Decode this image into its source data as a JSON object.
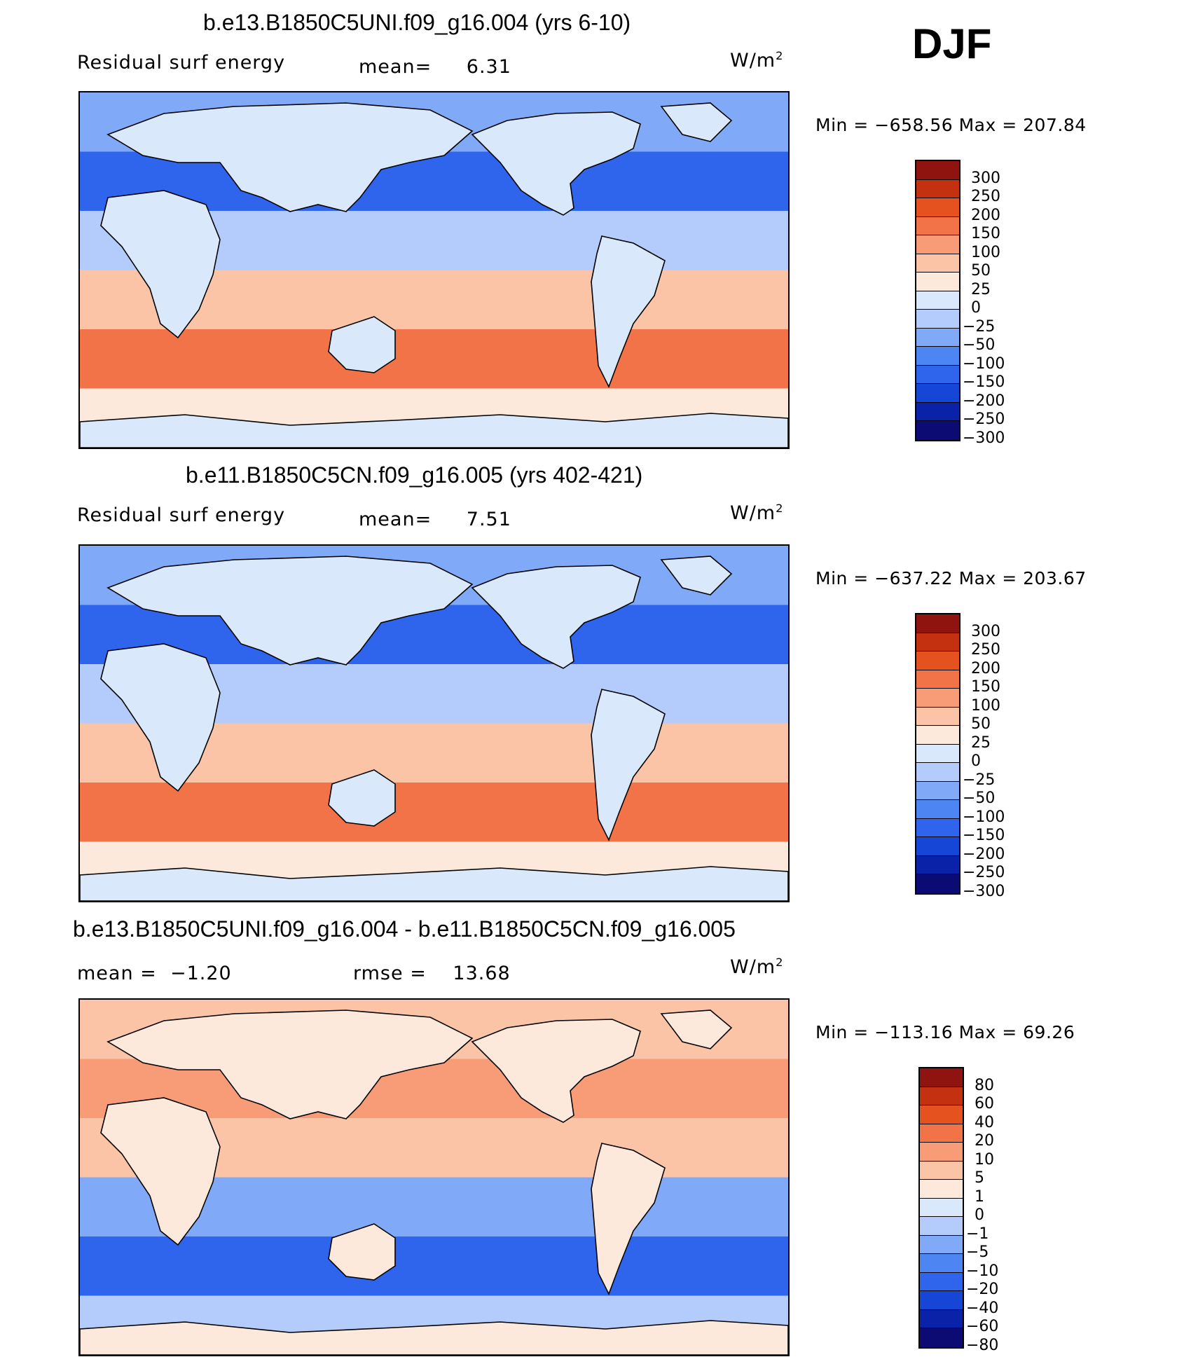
{
  "season": "DJF",
  "units_base": "W/m",
  "units_exp": "2",
  "colors": {
    "main": [
      "#0b0b73",
      "#0a22a8",
      "#1646d6",
      "#2e65ec",
      "#4d86f2",
      "#80aaf7",
      "#b3ccfb",
      "#d9e8fb",
      "#fde9db",
      "#fcc4a6",
      "#f79c77",
      "#f37348",
      "#e5511f",
      "#c33110",
      "#8f1410"
    ],
    "diff": [
      "#0b0b73",
      "#0a22a8",
      "#1646d6",
      "#2e65ec",
      "#4d86f2",
      "#80aaf7",
      "#b3ccfb",
      "#d9e8fb",
      "#fde9db",
      "#fcc4a6",
      "#f79c77",
      "#f37348",
      "#e5511f",
      "#c33110",
      "#8f1410"
    ],
    "land_fill": "#d9e8fb"
  },
  "panels": [
    {
      "title": "b.e13.B1850C5UNI.f09_g16.004 (yrs 6-10)",
      "left_label": "Residual surf energy",
      "center_key": "mean=",
      "center_value": "6.31",
      "min_key": "Min =",
      "min_value": "−658.56",
      "max_key": "Max =",
      "max_value": "207.84"
    },
    {
      "title": "b.e11.B1850C5CN.f09_g16.005 (yrs 402-421)",
      "left_label": "Residual surf energy",
      "center_key": "mean=",
      "center_value": "7.51",
      "min_key": "Min =",
      "min_value": "−637.22",
      "max_key": "Max =",
      "max_value": "203.67"
    },
    {
      "title": "b.e13.B1850C5UNI.f09_g16.004 - b.e11.B1850C5CN.f09_g16.005",
      "left_label": "mean =  −1.20",
      "center_key": "rmse =",
      "center_value": "13.68",
      "min_key": "Min =",
      "min_value": "−113.16",
      "max_key": "Max =",
      "max_value": "69.26"
    }
  ],
  "chart_data": [
    {
      "type": "heatmap",
      "title": "b.e13.B1850C5UNI.f09_g16.004 (yrs 6-10)",
      "variable": "Residual surf energy",
      "units": "W/m2",
      "mean": 6.31,
      "min": -658.56,
      "max": 207.84,
      "colorbar_levels": [
        "300",
        "250",
        "200",
        "150",
        "100",
        "50",
        "25",
        "0",
        "−25",
        "−50",
        "−100",
        "−150",
        "−200",
        "−250",
        "−300"
      ],
      "zonal_bands": [
        {
          "lat": "60N-90N",
          "value": -50
        },
        {
          "lat": "30N-60N",
          "value": -150
        },
        {
          "lat": "0-30N",
          "value": -25
        },
        {
          "lat": "0-30S",
          "value": 50
        },
        {
          "lat": "30S-60S",
          "value": 150
        },
        {
          "lat": "60S-90S",
          "value": 25
        }
      ]
    },
    {
      "type": "heatmap",
      "title": "b.e11.B1850C5CN.f09_g16.005 (yrs 402-421)",
      "variable": "Residual surf energy",
      "units": "W/m2",
      "mean": 7.51,
      "min": -637.22,
      "max": 203.67,
      "colorbar_levels": [
        "300",
        "250",
        "200",
        "150",
        "100",
        "50",
        "25",
        "0",
        "−25",
        "−50",
        "−100",
        "−150",
        "−200",
        "−250",
        "−300"
      ],
      "zonal_bands": [
        {
          "lat": "60N-90N",
          "value": -50
        },
        {
          "lat": "30N-60N",
          "value": -150
        },
        {
          "lat": "0-30N",
          "value": -25
        },
        {
          "lat": "0-30S",
          "value": 50
        },
        {
          "lat": "30S-60S",
          "value": 150
        },
        {
          "lat": "60S-90S",
          "value": 25
        }
      ]
    },
    {
      "type": "heatmap",
      "title": "b.e13.B1850C5UNI.f09_g16.004 - b.e11.B1850C5CN.f09_g16.005",
      "variable": "Residual surf energy difference",
      "units": "W/m2",
      "mean": -1.2,
      "rmse": 13.68,
      "min": -113.16,
      "max": 69.26,
      "colorbar_levels": [
        "80",
        "60",
        "40",
        "20",
        "10",
        "5",
        "1",
        "0",
        "−1",
        "−5",
        "−10",
        "−20",
        "−40",
        "−60",
        "−80"
      ],
      "zonal_bands": [
        {
          "lat": "60N-90N",
          "value": 5
        },
        {
          "lat": "30N-60N",
          "value": 10
        },
        {
          "lat": "0-30N",
          "value": 5
        },
        {
          "lat": "0-30S",
          "value": -5
        },
        {
          "lat": "30S-60S",
          "value": -20
        },
        {
          "lat": "60S-90S",
          "value": -1
        }
      ]
    }
  ]
}
